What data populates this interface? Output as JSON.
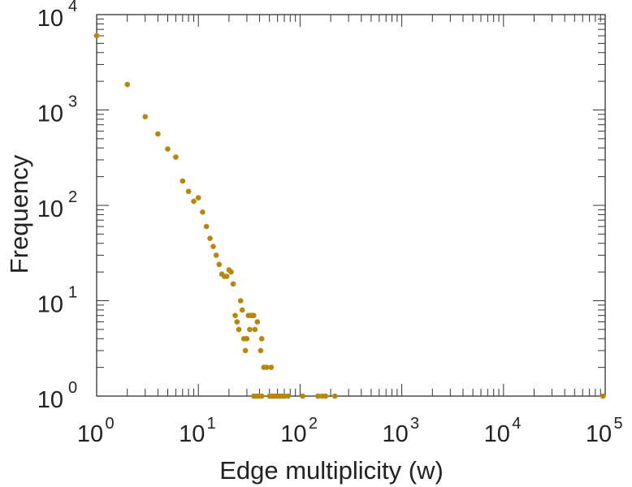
{
  "chart_data": {
    "type": "scatter",
    "xscale": "log",
    "yscale": "log",
    "xlim": [
      1,
      100000
    ],
    "ylim": [
      1,
      10000
    ],
    "xlabel": "Edge multiplicity (w)",
    "ylabel": "Frequency",
    "grid": false,
    "marker_color": "#b8860b",
    "x_ticks": [
      {
        "base": "10",
        "exp": "0",
        "value": 1
      },
      {
        "base": "10",
        "exp": "1",
        "value": 10
      },
      {
        "base": "10",
        "exp": "2",
        "value": 100
      },
      {
        "base": "10",
        "exp": "3",
        "value": 1000
      },
      {
        "base": "10",
        "exp": "4",
        "value": 10000
      },
      {
        "base": "10",
        "exp": "5",
        "value": 100000
      }
    ],
    "y_ticks": [
      {
        "base": "10",
        "exp": "0",
        "value": 1
      },
      {
        "base": "10",
        "exp": "1",
        "value": 10
      },
      {
        "base": "10",
        "exp": "2",
        "value": 100
      },
      {
        "base": "10",
        "exp": "3",
        "value": 1000
      },
      {
        "base": "10",
        "exp": "4",
        "value": 10000
      }
    ],
    "series": [
      {
        "points": [
          [
            1,
            6000
          ],
          [
            2,
            1850
          ],
          [
            3,
            850
          ],
          [
            4,
            560
          ],
          [
            5,
            390
          ],
          [
            6,
            320
          ],
          [
            7,
            180
          ],
          [
            8,
            140
          ],
          [
            9,
            110
          ],
          [
            10,
            120
          ],
          [
            11,
            85
          ],
          [
            12,
            60
          ],
          [
            13,
            45
          ],
          [
            14,
            37
          ],
          [
            15,
            30
          ],
          [
            16,
            24
          ],
          [
            17,
            19
          ],
          [
            18,
            18
          ],
          [
            19,
            18
          ],
          [
            20,
            21
          ],
          [
            21,
            20
          ],
          [
            22,
            15
          ],
          [
            23,
            7
          ],
          [
            24,
            6
          ],
          [
            25,
            5
          ],
          [
            26,
            10
          ],
          [
            27,
            8
          ],
          [
            28,
            4
          ],
          [
            29,
            3
          ],
          [
            30,
            4
          ],
          [
            31,
            7
          ],
          [
            32,
            5
          ],
          [
            33,
            7
          ],
          [
            34,
            7
          ],
          [
            35,
            7
          ],
          [
            36,
            5
          ],
          [
            38,
            6
          ],
          [
            41,
            3
          ],
          [
            42,
            4
          ],
          [
            44,
            2
          ],
          [
            47,
            2
          ],
          [
            52,
            2
          ],
          [
            35,
            1
          ],
          [
            37,
            1
          ],
          [
            39,
            1
          ],
          [
            42,
            1
          ],
          [
            50,
            1
          ],
          [
            53,
            1
          ],
          [
            55,
            1
          ],
          [
            58,
            1
          ],
          [
            61,
            1
          ],
          [
            64,
            1
          ],
          [
            67,
            1
          ],
          [
            70,
            1
          ],
          [
            76,
            1
          ],
          [
            106,
            1
          ],
          [
            150,
            1
          ],
          [
            165,
            1
          ],
          [
            178,
            1
          ],
          [
            220,
            1
          ],
          [
            95000,
            1
          ]
        ]
      }
    ]
  }
}
